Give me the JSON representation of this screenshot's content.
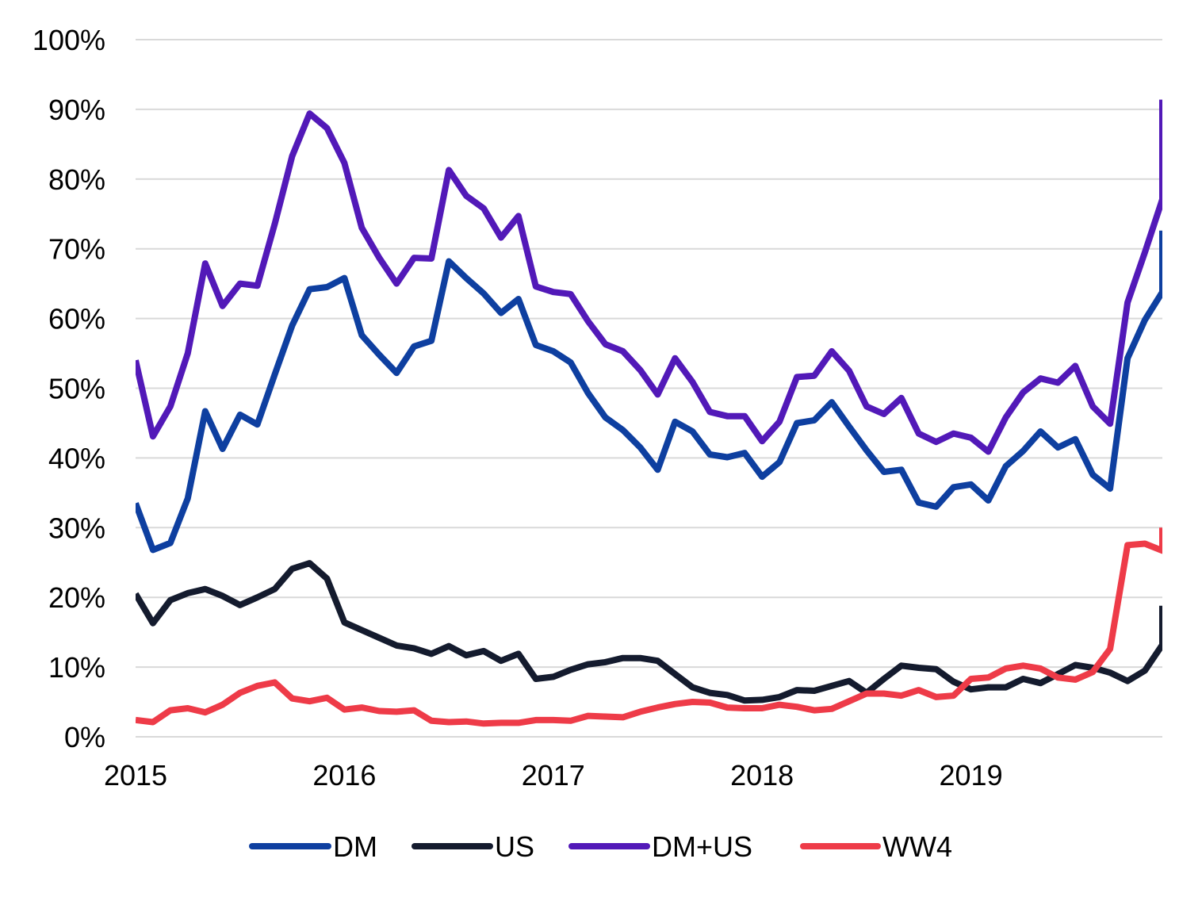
{
  "chart_data": {
    "type": "line",
    "title": "",
    "xlabel": "",
    "ylabel": "",
    "x_start": 2015.0,
    "x_step": 0.08333333,
    "xlim": [
      2015.0,
      2019.9167
    ],
    "ylim": [
      0,
      100
    ],
    "grid": true,
    "y_ticks": [
      {
        "value": 0,
        "label": "0%"
      },
      {
        "value": 10,
        "label": "10%"
      },
      {
        "value": 20,
        "label": "20%"
      },
      {
        "value": 30,
        "label": "30%"
      },
      {
        "value": 40,
        "label": "40%"
      },
      {
        "value": 50,
        "label": "50%"
      },
      {
        "value": 60,
        "label": "60%"
      },
      {
        "value": 70,
        "label": "70%"
      },
      {
        "value": 80,
        "label": "80%"
      },
      {
        "value": 90,
        "label": "90%"
      },
      {
        "value": 100,
        "label": "100%"
      }
    ],
    "x_ticks": [
      {
        "value": 2015,
        "label": "2015"
      },
      {
        "value": 2016,
        "label": "2016"
      },
      {
        "value": 2017,
        "label": "2017"
      },
      {
        "value": 2018,
        "label": "2018"
      },
      {
        "value": 2019,
        "label": "2019"
      }
    ],
    "legend_position": "bottom",
    "series": [
      {
        "name": "DM",
        "color": "#0e3fa0",
        "values": [
          33.5,
          26.8,
          27.8,
          34.2,
          46.7,
          41.3,
          46.2,
          44.8,
          52.0,
          59.0,
          64.2,
          64.5,
          65.8,
          57.6,
          54.8,
          52.2,
          56.0,
          56.8,
          68.2,
          65.8,
          63.6,
          60.8,
          62.8,
          56.2,
          55.3,
          53.7,
          49.3,
          45.8,
          44.0,
          41.5,
          38.3,
          45.2,
          43.8,
          40.5,
          40.1,
          40.7,
          37.3,
          39.4,
          45.0,
          45.4,
          48.0,
          44.5,
          41.1,
          38.0,
          38.3,
          33.6,
          33.0,
          35.8,
          36.2,
          33.9,
          38.8,
          41.0,
          43.8,
          41.5,
          42.7,
          37.6,
          35.6,
          54.3,
          59.8,
          63.8,
          72.6
        ]
      },
      {
        "name": "US",
        "color": "#141b2e",
        "values": [
          20.5,
          16.3,
          19.6,
          20.6,
          21.2,
          20.2,
          18.9,
          20.0,
          21.2,
          24.1,
          24.9,
          22.7,
          16.4,
          15.3,
          14.2,
          13.1,
          12.7,
          11.9,
          13.0,
          11.7,
          12.3,
          10.9,
          11.9,
          8.3,
          8.6,
          9.6,
          10.4,
          10.7,
          11.3,
          11.3,
          10.9,
          9.0,
          7.1,
          6.3,
          6.0,
          5.2,
          5.3,
          5.7,
          6.7,
          6.6,
          7.3,
          8.0,
          6.3,
          8.3,
          10.2,
          9.9,
          9.7,
          7.9,
          6.8,
          7.1,
          7.1,
          8.3,
          7.7,
          9.0,
          10.3,
          9.9,
          9.2,
          8.0,
          9.5,
          13.2,
          18.8
        ]
      },
      {
        "name": "DM+US",
        "color": "#5219b8",
        "values": [
          54.0,
          43.1,
          47.4,
          55.0,
          67.9,
          61.8,
          65.0,
          64.7,
          73.6,
          83.3,
          89.4,
          87.3,
          82.3,
          73.0,
          68.7,
          65.0,
          68.7,
          68.6,
          81.3,
          77.6,
          75.8,
          71.6,
          74.7,
          64.6,
          63.8,
          63.5,
          59.6,
          56.3,
          55.3,
          52.6,
          49.1,
          54.3,
          50.9,
          46.6,
          46.0,
          46.0,
          42.4,
          45.2,
          51.6,
          51.8,
          55.3,
          52.5,
          47.4,
          46.3,
          48.6,
          43.5,
          42.3,
          43.5,
          42.9,
          40.9,
          45.8,
          49.4,
          51.4,
          50.8,
          53.2,
          47.4,
          44.9,
          62.3,
          69.5,
          77.1,
          91.4
        ]
      },
      {
        "name": "WW4",
        "color": "#ee3b48",
        "values": [
          2.4,
          2.1,
          3.8,
          4.1,
          3.5,
          4.6,
          6.3,
          7.3,
          7.8,
          5.5,
          5.1,
          5.6,
          3.9,
          4.2,
          3.7,
          3.6,
          3.8,
          2.3,
          2.1,
          2.2,
          1.9,
          2.0,
          2.0,
          2.4,
          2.4,
          2.3,
          3.0,
          2.9,
          2.8,
          3.6,
          4.2,
          4.7,
          5.0,
          4.9,
          4.2,
          4.1,
          4.1,
          4.6,
          4.3,
          3.8,
          4.0,
          5.1,
          6.2,
          6.2,
          5.9,
          6.7,
          5.7,
          5.9,
          8.3,
          8.5,
          9.8,
          10.2,
          9.8,
          8.5,
          8.2,
          9.3,
          12.6,
          27.5,
          27.7,
          26.7,
          30.0
        ]
      }
    ]
  }
}
